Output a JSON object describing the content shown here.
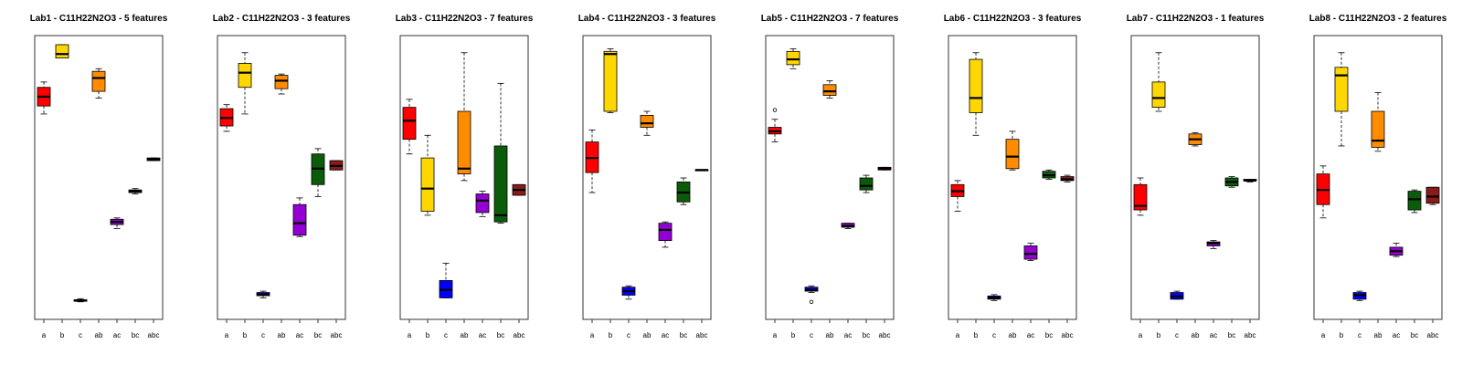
{
  "palette": {
    "a": "#ff0000",
    "b": "#ffd700",
    "c": "#0000ff",
    "ab": "#ff8c00",
    "ac": "#9400d3",
    "bc": "#0a5c0a",
    "abc": "#8b1a1a"
  },
  "chart_data": [
    {
      "type": "box",
      "title": "Lab1 - C11H22N2O3 - 5 features",
      "categories": [
        "a",
        "b",
        "c",
        "ab",
        "ac",
        "bc",
        "abc"
      ],
      "ylim": [
        0,
        1
      ],
      "boxes": [
        {
          "category": "a",
          "min": 0.74,
          "q1": 0.77,
          "median": 0.805,
          "q3": 0.84,
          "max": 0.86
        },
        {
          "category": "b",
          "min": 0.95,
          "q1": 0.95,
          "median": 0.965,
          "q3": 1.0,
          "max": 1.0
        },
        {
          "category": "c",
          "min": 0.035,
          "q1": 0.037,
          "median": 0.04,
          "q3": 0.043,
          "max": 0.047
        },
        {
          "category": "ab",
          "min": 0.8,
          "q1": 0.825,
          "median": 0.875,
          "q3": 0.9,
          "max": 0.91
        },
        {
          "category": "ac",
          "min": 0.31,
          "q1": 0.325,
          "median": 0.335,
          "q3": 0.345,
          "max": 0.35
        },
        {
          "category": "bc",
          "min": 0.44,
          "q1": 0.445,
          "median": 0.45,
          "q3": 0.455,
          "max": 0.46
        },
        {
          "category": "abc",
          "min": 0.565,
          "q1": 0.565,
          "median": 0.57,
          "q3": 0.575,
          "max": 0.575
        }
      ]
    },
    {
      "type": "box",
      "title": "Lab2 - C11H22N2O3 - 3 features",
      "categories": [
        "a",
        "b",
        "c",
        "ab",
        "ac",
        "bc",
        "abc"
      ],
      "ylim": [
        0,
        1
      ],
      "boxes": [
        {
          "category": "a",
          "min": 0.675,
          "q1": 0.695,
          "median": 0.725,
          "q3": 0.76,
          "max": 0.775
        },
        {
          "category": "b",
          "min": 0.74,
          "q1": 0.84,
          "median": 0.895,
          "q3": 0.93,
          "max": 0.97
        },
        {
          "category": "c",
          "min": 0.05,
          "q1": 0.058,
          "median": 0.063,
          "q3": 0.07,
          "max": 0.075
        },
        {
          "category": "ab",
          "min": 0.815,
          "q1": 0.835,
          "median": 0.865,
          "q3": 0.885,
          "max": 0.89
        },
        {
          "category": "ac",
          "min": 0.28,
          "q1": 0.285,
          "median": 0.33,
          "q3": 0.4,
          "max": 0.425
        },
        {
          "category": "bc",
          "min": 0.43,
          "q1": 0.475,
          "median": 0.535,
          "q3": 0.59,
          "max": 0.61
        },
        {
          "category": "abc",
          "min": 0.53,
          "q1": 0.53,
          "median": 0.545,
          "q3": 0.565,
          "max": 0.565
        }
      ]
    },
    {
      "type": "box",
      "title": "Lab3 - C11H22N2O3 - 7 features",
      "categories": [
        "a",
        "b",
        "c",
        "ab",
        "ac",
        "bc",
        "abc"
      ],
      "ylim": [
        0,
        1
      ],
      "boxes": [
        {
          "category": "a",
          "min": 0.59,
          "q1": 0.645,
          "median": 0.715,
          "q3": 0.765,
          "max": 0.795
        },
        {
          "category": "b",
          "min": 0.36,
          "q1": 0.375,
          "median": 0.46,
          "q3": 0.575,
          "max": 0.66
        },
        {
          "category": "c",
          "min": 0.05,
          "q1": 0.05,
          "median": 0.08,
          "q3": 0.115,
          "max": 0.18
        },
        {
          "category": "ab",
          "min": 0.49,
          "q1": 0.515,
          "median": 0.535,
          "q3": 0.75,
          "max": 0.97
        },
        {
          "category": "ac",
          "min": 0.355,
          "q1": 0.37,
          "median": 0.415,
          "q3": 0.44,
          "max": 0.45
        },
        {
          "category": "bc",
          "min": 0.33,
          "q1": 0.335,
          "median": 0.36,
          "q3": 0.62,
          "max": 0.855
        },
        {
          "category": "abc",
          "min": 0.435,
          "q1": 0.435,
          "median": 0.455,
          "q3": 0.475,
          "max": 0.475
        }
      ]
    },
    {
      "type": "box",
      "title": "Lab4 - C11H22N2O3 - 3 features",
      "categories": [
        "a",
        "b",
        "c",
        "ab",
        "ac",
        "bc",
        "abc"
      ],
      "ylim": [
        0,
        1
      ],
      "boxes": [
        {
          "category": "a",
          "min": 0.445,
          "q1": 0.52,
          "median": 0.575,
          "q3": 0.635,
          "max": 0.68
        },
        {
          "category": "b",
          "min": 0.745,
          "q1": 0.75,
          "median": 0.965,
          "q3": 0.975,
          "max": 0.985
        },
        {
          "category": "c",
          "min": 0.045,
          "q1": 0.06,
          "median": 0.075,
          "q3": 0.09,
          "max": 0.095
        },
        {
          "category": "ab",
          "min": 0.66,
          "q1": 0.69,
          "median": 0.705,
          "q3": 0.735,
          "max": 0.75
        },
        {
          "category": "ac",
          "min": 0.24,
          "q1": 0.265,
          "median": 0.305,
          "q3": 0.33,
          "max": 0.335
        },
        {
          "category": "bc",
          "min": 0.4,
          "q1": 0.41,
          "median": 0.445,
          "q3": 0.485,
          "max": 0.5
        },
        {
          "category": "abc",
          "min": 0.53,
          "q1": 0.53,
          "median": 0.53,
          "q3": 0.53,
          "max": 0.53
        }
      ]
    },
    {
      "type": "box",
      "title": "Lab5 - C11H22N2O3 - 7 features",
      "categories": [
        "a",
        "b",
        "c",
        "ab",
        "ac",
        "bc",
        "abc"
      ],
      "ylim": [
        0,
        1
      ],
      "boxes": [
        {
          "category": "a",
          "min": 0.635,
          "q1": 0.665,
          "median": 0.675,
          "q3": 0.69,
          "max": 0.72,
          "outliers": [
            0.755
          ]
        },
        {
          "category": "b",
          "min": 0.91,
          "q1": 0.925,
          "median": 0.945,
          "q3": 0.975,
          "max": 0.985
        },
        {
          "category": "c",
          "min": 0.07,
          "q1": 0.075,
          "median": 0.08,
          "q3": 0.09,
          "max": 0.095,
          "outliers": [
            0.035
          ]
        },
        {
          "category": "ab",
          "min": 0.8,
          "q1": 0.81,
          "median": 0.825,
          "q3": 0.85,
          "max": 0.865
        },
        {
          "category": "ac",
          "min": 0.31,
          "q1": 0.315,
          "median": 0.32,
          "q3": 0.33,
          "max": 0.33
        },
        {
          "category": "bc",
          "min": 0.445,
          "q1": 0.455,
          "median": 0.47,
          "q3": 0.5,
          "max": 0.51
        },
        {
          "category": "abc",
          "min": 0.53,
          "q1": 0.53,
          "median": 0.535,
          "q3": 0.54,
          "max": 0.54
        }
      ]
    },
    {
      "type": "box",
      "title": "Lab6 - C11H22N2O3 - 3 features",
      "categories": [
        "a",
        "b",
        "c",
        "ab",
        "ac",
        "bc",
        "abc"
      ],
      "ylim": [
        0,
        1
      ],
      "boxes": [
        {
          "category": "a",
          "min": 0.375,
          "q1": 0.43,
          "median": 0.45,
          "q3": 0.475,
          "max": 0.49
        },
        {
          "category": "b",
          "min": 0.66,
          "q1": 0.745,
          "median": 0.8,
          "q3": 0.945,
          "max": 0.97
        },
        {
          "category": "c",
          "min": 0.04,
          "q1": 0.045,
          "median": 0.05,
          "q3": 0.057,
          "max": 0.062
        },
        {
          "category": "ab",
          "min": 0.53,
          "q1": 0.535,
          "median": 0.58,
          "q3": 0.645,
          "max": 0.675
        },
        {
          "category": "ac",
          "min": 0.19,
          "q1": 0.195,
          "median": 0.215,
          "q3": 0.245,
          "max": 0.255
        },
        {
          "category": "bc",
          "min": 0.495,
          "q1": 0.5,
          "median": 0.51,
          "q3": 0.525,
          "max": 0.53
        },
        {
          "category": "abc",
          "min": 0.485,
          "q1": 0.49,
          "median": 0.495,
          "q3": 0.505,
          "max": 0.51
        }
      ]
    },
    {
      "type": "box",
      "title": "Lab7 - C11H22N2O3 - 1 features",
      "categories": [
        "a",
        "b",
        "c",
        "ab",
        "ac",
        "bc",
        "abc"
      ],
      "ylim": [
        0,
        1
      ],
      "boxes": [
        {
          "category": "a",
          "min": 0.36,
          "q1": 0.38,
          "median": 0.395,
          "q3": 0.475,
          "max": 0.5
        },
        {
          "category": "b",
          "min": 0.75,
          "q1": 0.765,
          "median": 0.8,
          "q3": 0.86,
          "max": 0.97
        },
        {
          "category": "c",
          "min": 0.045,
          "q1": 0.045,
          "median": 0.055,
          "q3": 0.07,
          "max": 0.075
        },
        {
          "category": "ab",
          "min": 0.62,
          "q1": 0.625,
          "median": 0.645,
          "q3": 0.665,
          "max": 0.67
        },
        {
          "category": "ac",
          "min": 0.235,
          "q1": 0.245,
          "median": 0.255,
          "q3": 0.26,
          "max": 0.265
        },
        {
          "category": "bc",
          "min": 0.465,
          "q1": 0.47,
          "median": 0.485,
          "q3": 0.5,
          "max": 0.505
        },
        {
          "category": "abc",
          "min": 0.485,
          "q1": 0.49,
          "median": 0.49,
          "q3": 0.495,
          "max": 0.495
        }
      ]
    },
    {
      "type": "box",
      "title": "Lab8 - C11H22N2O3 - 2 features",
      "categories": [
        "a",
        "b",
        "c",
        "ab",
        "ac",
        "bc",
        "abc"
      ],
      "ylim": [
        0,
        1
      ],
      "boxes": [
        {
          "category": "a",
          "min": 0.35,
          "q1": 0.4,
          "median": 0.455,
          "q3": 0.515,
          "max": 0.545
        },
        {
          "category": "b",
          "min": 0.62,
          "q1": 0.75,
          "median": 0.885,
          "q3": 0.915,
          "max": 0.97
        },
        {
          "category": "c",
          "min": 0.04,
          "q1": 0.045,
          "median": 0.06,
          "q3": 0.07,
          "max": 0.075
        },
        {
          "category": "ab",
          "min": 0.6,
          "q1": 0.615,
          "median": 0.64,
          "q3": 0.75,
          "max": 0.82
        },
        {
          "category": "ac",
          "min": 0.205,
          "q1": 0.21,
          "median": 0.225,
          "q3": 0.24,
          "max": 0.255
        },
        {
          "category": "bc",
          "min": 0.37,
          "q1": 0.38,
          "median": 0.42,
          "q3": 0.45,
          "max": 0.455
        },
        {
          "category": "abc",
          "min": 0.4,
          "q1": 0.405,
          "median": 0.43,
          "q3": 0.465,
          "max": 0.465
        }
      ]
    }
  ]
}
